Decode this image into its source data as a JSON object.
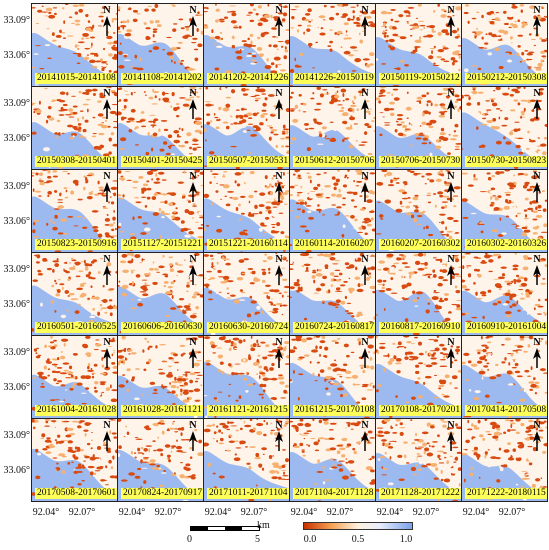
{
  "panels": [
    "20141015-20141108",
    "20141108-20141202",
    "20141202-20141226",
    "20141226-20150119",
    "20150119-20150212",
    "20150212-20150308",
    "20150308-20150401",
    "20150401-20150425",
    "20150507-20150531",
    "20150612-20150706",
    "20150706-20150730",
    "20150730-20150823",
    "20150823-20150916",
    "20151127-20151221",
    "20151221-20160114",
    "20160114-20160207",
    "20160207-20160302",
    "20160302-20160326",
    "20160501-20160525",
    "20160606-20160630",
    "20160630-20160724",
    "20160724-20160817",
    "20160817-20160910",
    "20160910-20161004",
    "20161004-20161028",
    "20161028-20161121",
    "20161121-20161215",
    "20161215-20170108",
    "20170108-20170201",
    "20170414-20170508",
    "20170508-20170601",
    "20170824-20170917",
    "20171011-20171104",
    "20171104-20171128",
    "20171128-20171222",
    "20171222-20180115"
  ],
  "north_label": "N",
  "y_ticks": [
    "33.09°",
    "33.06°"
  ],
  "x_ticks": [
    "92.04°",
    "92.07°"
  ],
  "scalebar": {
    "min": "0",
    "mid": "5",
    "unit": "km"
  },
  "colorbar": {
    "ticks": [
      "0.0",
      "0.5",
      "1.0"
    ],
    "colors": {
      "low": "#c83200",
      "mid_low": "#f5a050",
      "mid": "#fff2e0",
      "mid_high": "#e8eefc",
      "high": "#7aa2ea"
    }
  },
  "map_colors": {
    "water": "#9dbaf0",
    "coherence_low": "#d84a10",
    "coherence_mid": "#f6b070",
    "coherence_pale": "#fff4ea"
  }
}
